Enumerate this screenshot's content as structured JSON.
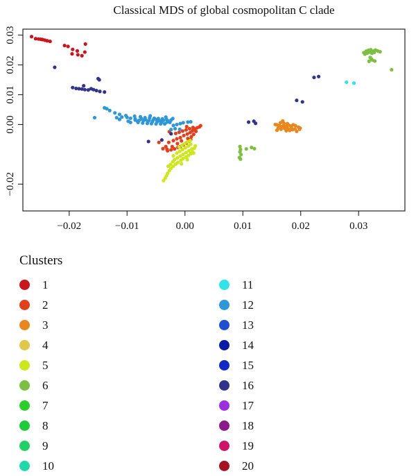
{
  "chart_data": {
    "type": "scatter",
    "title": "Classical MDS of global cosmopolitan C clade",
    "xlim": [
      -0.028,
      0.038
    ],
    "ylim": [
      -0.029,
      0.032
    ],
    "x_ticks": [
      -0.02,
      -0.01,
      0.0,
      0.01,
      0.02,
      0.03
    ],
    "x_tick_labels": [
      "−0.02",
      "−0.01",
      "0.00",
      "0.01",
      "0.02",
      "0.03"
    ],
    "y_ticks": [
      -0.02,
      0.0,
      0.01,
      0.02,
      0.03
    ],
    "y_tick_labels": [
      "−0.02",
      "0.00",
      "0.01",
      "0.02",
      "0.03"
    ],
    "grid": false,
    "legend_title": "Clusters",
    "legend_placement": "below",
    "series": [
      {
        "name": "1",
        "color": "#c8161d",
        "points": [
          [
            -0.0265,
            0.0295
          ],
          [
            -0.0258,
            0.0288
          ],
          [
            -0.0253,
            0.0287
          ],
          [
            -0.0249,
            0.0286
          ],
          [
            -0.0246,
            0.0285
          ],
          [
            -0.0242,
            0.0283
          ],
          [
            -0.0238,
            0.0281
          ],
          [
            -0.0233,
            0.0279
          ],
          [
            -0.0208,
            0.0265
          ],
          [
            -0.0202,
            0.0262
          ],
          [
            -0.0194,
            0.0252
          ],
          [
            -0.0186,
            0.0247
          ],
          [
            -0.0172,
            0.027
          ],
          [
            -0.0173,
            0.0243
          ],
          [
            -0.0195,
            0.0237
          ],
          [
            -0.0185,
            0.0234
          ],
          [
            -0.0178,
            0.0231
          ]
        ]
      },
      {
        "name": "2",
        "color": "#e0401c",
        "points": [
          [
            -0.003,
            -0.0088
          ],
          [
            -0.0024,
            -0.0085
          ],
          [
            -0.0018,
            -0.0082
          ],
          [
            -0.0012,
            -0.0077
          ],
          [
            -0.0008,
            -0.0074
          ],
          [
            -0.0003,
            -0.0069
          ],
          [
            0.0002,
            -0.0063
          ],
          [
            0.0007,
            -0.0056
          ],
          [
            0.001,
            -0.005
          ],
          [
            -0.0028,
            -0.006
          ],
          [
            -0.002,
            -0.0054
          ],
          [
            -0.0014,
            -0.0048
          ],
          [
            -0.0008,
            -0.0044
          ],
          [
            -0.0002,
            -0.0037
          ],
          [
            0.0004,
            -0.0032
          ],
          [
            0.0009,
            -0.0027
          ],
          [
            0.0013,
            -0.0021
          ],
          [
            0.0017,
            -0.0015
          ],
          [
            0.0021,
            -0.0011
          ],
          [
            0.0025,
            -0.0008
          ],
          [
            0.0027,
            -0.0004
          ],
          [
            -0.0016,
            -0.003
          ],
          [
            -0.001,
            -0.0026
          ],
          [
            -0.0004,
            -0.0022
          ],
          [
            0.0002,
            -0.0018
          ],
          [
            0.0008,
            -0.0014
          ],
          [
            0.0014,
            -0.001
          ],
          [
            -0.0031,
            -0.0083
          ],
          [
            -0.0022,
            -0.0074
          ],
          [
            -0.0013,
            -0.0064
          ],
          [
            0.0011,
            -0.0041
          ],
          [
            0.0005,
            -0.0047
          ],
          [
            0.0019,
            -0.0023
          ],
          [
            0.0015,
            -0.0033
          ],
          [
            -0.0006,
            -0.0055
          ],
          [
            -0.0033,
            -0.0074
          ],
          [
            -0.0038,
            -0.0081
          ],
          [
            -0.0045,
            -0.006
          ],
          [
            -0.0027,
            -0.0024
          ],
          [
            0.0003,
            -0.0007
          ]
        ]
      },
      {
        "name": "3",
        "color": "#e8871e",
        "points": [
          [
            0.0159,
            -0.0001
          ],
          [
            0.0163,
            -0.0004
          ],
          [
            0.0167,
            -0.0007
          ],
          [
            0.0171,
            -0.0003
          ],
          [
            0.0175,
            -0.0006
          ],
          [
            0.0179,
            -0.0002
          ],
          [
            0.0183,
            -0.0005
          ],
          [
            0.0187,
            -0.0001
          ],
          [
            0.0191,
            -0.0004
          ],
          [
            0.0161,
            -0.0012
          ],
          [
            0.0166,
            -0.0016
          ],
          [
            0.0172,
            -0.0013
          ],
          [
            0.0178,
            -0.0014
          ],
          [
            0.0184,
            -0.0011
          ],
          [
            0.019,
            -0.0015
          ],
          [
            0.0196,
            -0.0009
          ],
          [
            0.0199,
            -0.0012
          ],
          [
            0.0165,
            0.0006
          ],
          [
            0.0171,
            0.0004
          ],
          [
            0.0177,
            0.0003
          ],
          [
            0.0169,
            0.0012
          ],
          [
            0.0181,
            -0.002
          ],
          [
            0.0175,
            -0.0021
          ],
          [
            0.0193,
            -0.0023
          ],
          [
            0.0156,
            0.0
          ],
          [
            0.0186,
            -0.0017
          ],
          [
            0.0198,
            -0.0016
          ],
          [
            0.0159,
            -0.0019
          ]
        ]
      },
      {
        "name": "4",
        "color": "#e0c84a",
        "points": []
      },
      {
        "name": "5",
        "color": "#cde61f",
        "points": [
          [
            -0.0037,
            -0.0188
          ],
          [
            -0.0034,
            -0.018
          ],
          [
            -0.0032,
            -0.0172
          ],
          [
            -0.003,
            -0.0164
          ],
          [
            -0.0027,
            -0.0155
          ],
          [
            -0.0024,
            -0.0147
          ],
          [
            -0.002,
            -0.014
          ],
          [
            -0.0016,
            -0.0133
          ],
          [
            -0.0012,
            -0.0127
          ],
          [
            -0.0007,
            -0.012
          ],
          [
            -0.0003,
            -0.0114
          ],
          [
            0.0002,
            -0.0109
          ],
          [
            0.0006,
            -0.0104
          ],
          [
            0.001,
            -0.0098
          ],
          [
            0.0013,
            -0.0092
          ],
          [
            -0.0018,
            -0.0118
          ],
          [
            -0.0013,
            -0.0112
          ],
          [
            -0.0008,
            -0.0106
          ],
          [
            -0.0003,
            -0.01
          ],
          [
            0.0002,
            -0.0094
          ],
          [
            0.0007,
            -0.0088
          ],
          [
            0.0012,
            -0.0082
          ],
          [
            -0.0014,
            -0.0096
          ],
          [
            -0.0009,
            -0.009
          ],
          [
            -0.0004,
            -0.0084
          ],
          [
            0.0001,
            -0.0078
          ],
          [
            0.0006,
            -0.0072
          ],
          [
            0.001,
            -0.0066
          ],
          [
            -0.001,
            -0.0076
          ],
          [
            -0.0005,
            -0.007
          ],
          [
            0.0,
            -0.0064
          ],
          [
            0.0005,
            -0.0058
          ],
          [
            0.0009,
            -0.0054
          ],
          [
            -0.0025,
            -0.0134
          ],
          [
            -0.0029,
            -0.014
          ],
          [
            -0.0021,
            -0.0125
          ],
          [
            0.0016,
            -0.008
          ],
          [
            0.0018,
            -0.0072
          ],
          [
            0.0004,
            -0.0118
          ],
          [
            -0.0006,
            -0.0132
          ],
          [
            0.0015,
            -0.0096
          ],
          [
            -0.002,
            -0.0105
          ]
        ]
      },
      {
        "name": "6",
        "color": "#7dbf42",
        "points": [
          [
            0.0309,
            0.0241
          ],
          [
            0.0313,
            0.0246
          ],
          [
            0.0317,
            0.0249
          ],
          [
            0.0321,
            0.0251
          ],
          [
            0.0325,
            0.0246
          ],
          [
            0.0329,
            0.025
          ],
          [
            0.0333,
            0.0247
          ],
          [
            0.0337,
            0.0244
          ],
          [
            0.0311,
            0.0236
          ],
          [
            0.0315,
            0.024
          ],
          [
            0.0319,
            0.0243
          ],
          [
            0.0323,
            0.0239
          ],
          [
            0.0327,
            0.0242
          ],
          [
            0.032,
            0.0225
          ],
          [
            0.0324,
            0.0216
          ],
          [
            0.0318,
            0.0212
          ],
          [
            0.0322,
            0.022
          ],
          [
            0.0328,
            0.0213
          ],
          [
            0.0357,
            0.0184
          ],
          [
            0.0095,
            -0.0074
          ],
          [
            0.0096,
            -0.0084
          ],
          [
            0.0095,
            -0.0092
          ],
          [
            0.0097,
            -0.0101
          ],
          [
            0.0094,
            -0.0111
          ],
          [
            0.0096,
            -0.0116
          ],
          [
            0.0106,
            -0.0082
          ],
          [
            0.0115,
            -0.0077
          ],
          [
            0.012,
            -0.0081
          ]
        ]
      },
      {
        "name": "7",
        "color": "#2ecd2e",
        "points": []
      },
      {
        "name": "8",
        "color": "#1fcb3c",
        "points": []
      },
      {
        "name": "9",
        "color": "#23d068",
        "points": []
      },
      {
        "name": "10",
        "color": "#21d8a8",
        "points": []
      },
      {
        "name": "11",
        "color": "#33e3e8",
        "points": [
          [
            0.0279,
            0.0142
          ],
          [
            0.0292,
            0.0139
          ]
        ]
      },
      {
        "name": "12",
        "color": "#2f97d6",
        "points": [
          [
            -0.0139,
            0.0056
          ],
          [
            -0.0135,
            0.0053
          ],
          [
            -0.013,
            0.0047
          ],
          [
            -0.0121,
            0.0039
          ],
          [
            -0.0113,
            0.0034
          ],
          [
            -0.0102,
            0.003
          ],
          [
            -0.0094,
            0.0021
          ],
          [
            -0.0086,
            0.0019
          ],
          [
            -0.0079,
            0.0014
          ],
          [
            -0.0072,
            0.0013
          ],
          [
            -0.0064,
            0.001
          ],
          [
            -0.0056,
            0.001
          ],
          [
            -0.0048,
            0.0009
          ],
          [
            -0.004,
            0.0008
          ],
          [
            -0.0031,
            0.0008
          ],
          [
            -0.0026,
            0.0007
          ],
          [
            -0.0087,
            0.0028
          ],
          [
            -0.0077,
            0.0026
          ],
          [
            -0.0069,
            0.0023
          ],
          [
            -0.0061,
            0.0022
          ],
          [
            -0.0053,
            0.0021
          ],
          [
            -0.0046,
            0.002
          ],
          [
            -0.0039,
            0.0019
          ],
          [
            -0.0032,
            0.0018
          ],
          [
            -0.0081,
            0.0007
          ],
          [
            -0.0073,
            0.0005
          ],
          [
            -0.0065,
            0.0004
          ],
          [
            -0.0058,
            0.0003
          ],
          [
            -0.005,
            0.0002
          ],
          [
            -0.0042,
            0.0002
          ],
          [
            -0.0035,
            0.0002
          ],
          [
            -0.0086,
            0.0015
          ],
          [
            -0.0082,
            0.0011
          ],
          [
            -0.0075,
            0.0019
          ],
          [
            -0.0068,
            0.0016
          ],
          [
            -0.0062,
            0.0014
          ],
          [
            -0.0055,
            0.0015
          ],
          [
            -0.0049,
            0.0016
          ],
          [
            -0.0044,
            0.0013
          ],
          [
            -0.0037,
            0.0014
          ],
          [
            -0.003,
            0.0013
          ],
          [
            -0.0024,
            0.0015
          ],
          [
            -0.0021,
            0.002
          ],
          [
            -0.0118,
            0.0023
          ],
          [
            -0.0109,
            0.0025
          ],
          [
            -0.01,
            0.0024
          ],
          [
            -0.0156,
            0.0023
          ],
          [
            -0.002,
            -0.0003
          ],
          [
            -0.0014,
            0.0
          ],
          [
            -0.0008,
            0.0003
          ],
          [
            -0.0003,
            0.0006
          ],
          [
            0.0005,
            0.0008
          ],
          [
            0.001,
            0.0009
          ],
          [
            -0.0017,
            -0.0014
          ],
          [
            -0.0024,
            -0.0017
          ],
          [
            -0.0009,
            -0.0016
          ],
          [
            -0.0098,
            0.0011
          ],
          [
            -0.0113,
            0.0017
          ],
          [
            -0.0033,
            0.0025
          ],
          [
            -0.006,
            0.0029
          ],
          [
            -0.0094,
            0.0007
          ]
        ]
      },
      {
        "name": "13",
        "color": "#1d4fd0",
        "points": []
      },
      {
        "name": "14",
        "color": "#0b1aa4",
        "points": []
      },
      {
        "name": "15",
        "color": "#0f2bc4",
        "points": []
      },
      {
        "name": "16",
        "color": "#32338a",
        "points": [
          [
            -0.0194,
            0.0124
          ],
          [
            -0.0188,
            0.0121
          ],
          [
            -0.0183,
            0.012
          ],
          [
            -0.0178,
            0.0119
          ],
          [
            -0.0173,
            0.0117
          ],
          [
            -0.0167,
            0.0116
          ],
          [
            -0.0162,
            0.012
          ],
          [
            -0.0158,
            0.0117
          ],
          [
            -0.0153,
            0.0114
          ],
          [
            -0.0147,
            0.0111
          ],
          [
            -0.0139,
            0.0109
          ],
          [
            -0.0175,
            0.013
          ],
          [
            -0.015,
            0.0154
          ],
          [
            -0.0148,
            0.015
          ],
          [
            -0.0225,
            0.0192
          ],
          [
            -0.004,
            -0.0052
          ],
          [
            -0.0063,
            -0.0057
          ],
          [
            -0.0024,
            -0.0031
          ],
          [
            0.0231,
            0.0161
          ],
          [
            0.011,
            0.0008
          ],
          [
            0.0119,
            0.0011
          ],
          [
            0.0122,
            0.0004
          ],
          [
            0.0193,
            0.0081
          ],
          [
            0.0203,
            0.0076
          ],
          [
            0.0223,
            0.0158
          ]
        ]
      },
      {
        "name": "17",
        "color": "#9b2fe0",
        "points": []
      },
      {
        "name": "18",
        "color": "#8b1a8b",
        "points": []
      },
      {
        "name": "19",
        "color": "#cf1468",
        "points": []
      },
      {
        "name": "20",
        "color": "#a51222",
        "points": []
      }
    ]
  },
  "legend": {
    "title": "Clusters",
    "left_column": [
      {
        "label": "1",
        "color": "#c8161d"
      },
      {
        "label": "2",
        "color": "#e0401c"
      },
      {
        "label": "3",
        "color": "#e8871e"
      },
      {
        "label": "4",
        "color": "#e0c84a"
      },
      {
        "label": "5",
        "color": "#cde61f"
      },
      {
        "label": "6",
        "color": "#7dbf42"
      },
      {
        "label": "7",
        "color": "#2ecd2e"
      },
      {
        "label": "8",
        "color": "#1fcb3c"
      },
      {
        "label": "9",
        "color": "#23d068"
      },
      {
        "label": "10",
        "color": "#21d8a8"
      }
    ],
    "right_column": [
      {
        "label": "11",
        "color": "#33e3e8"
      },
      {
        "label": "12",
        "color": "#2f97d6"
      },
      {
        "label": "13",
        "color": "#1d4fd0"
      },
      {
        "label": "14",
        "color": "#0b1aa4"
      },
      {
        "label": "15",
        "color": "#0f2bc4"
      },
      {
        "label": "16",
        "color": "#32338a"
      },
      {
        "label": "17",
        "color": "#9b2fe0"
      },
      {
        "label": "18",
        "color": "#8b1a8b"
      },
      {
        "label": "19",
        "color": "#cf1468"
      },
      {
        "label": "20",
        "color": "#a51222"
      }
    ]
  }
}
